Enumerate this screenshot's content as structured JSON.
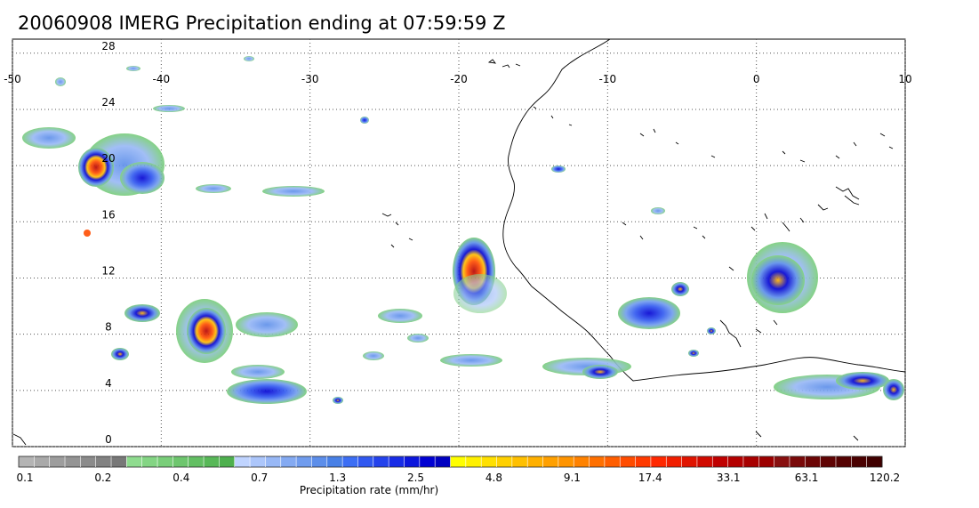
{
  "title": "20060908 IMERG Precipitation ending at 07:59:59 Z",
  "map": {
    "lon_range": [
      -50,
      10
    ],
    "lat_range": [
      0,
      29
    ],
    "lon_ticks": [
      "-50",
      "-40",
      "-30",
      "-20",
      "-10",
      "0",
      "10"
    ],
    "lat_ticks": [
      "0",
      "4",
      "8",
      "12",
      "16",
      "20",
      "24",
      "28"
    ],
    "gridlines": "dotted"
  },
  "colorbar": {
    "title": "Precipitation rate (mm/hr)",
    "labels": [
      "0.1",
      "0.2",
      "0.4",
      "0.7",
      "1.3",
      "2.5",
      "4.8",
      "9.1",
      "17.4",
      "33.1",
      "63.1",
      "120.2"
    ],
    "colors": [
      "#b4b4b4",
      "#a9a9a9",
      "#9d9d9d",
      "#949494",
      "#8b8b8b",
      "#828282",
      "#787878",
      "#8fdc8f",
      "#84d584",
      "#79ce79",
      "#6ec66e",
      "#63bf63",
      "#58b858",
      "#4eb04e",
      "#c0d4ff",
      "#acc6fb",
      "#98b8f6",
      "#84aaf2",
      "#709cee",
      "#5c8eea",
      "#4880e6",
      "#3c6ef4",
      "#3058f0",
      "#2442ec",
      "#182ce6",
      "#0c16dc",
      "#0000d2",
      "#0000c0",
      "#ffff00",
      "#fff000",
      "#ffe000",
      "#ffd000",
      "#ffc000",
      "#ffb000",
      "#ffa000",
      "#ff9400",
      "#ff8200",
      "#ff7000",
      "#ff5e00",
      "#ff4c00",
      "#ff3a00",
      "#ff2800",
      "#f01e00",
      "#e01400",
      "#d00a00",
      "#c00000",
      "#b40000",
      "#a80000",
      "#9c0000",
      "#881010",
      "#7a0a0a",
      "#6c0606",
      "#600404",
      "#540202",
      "#4a0000",
      "#400000"
    ]
  }
}
